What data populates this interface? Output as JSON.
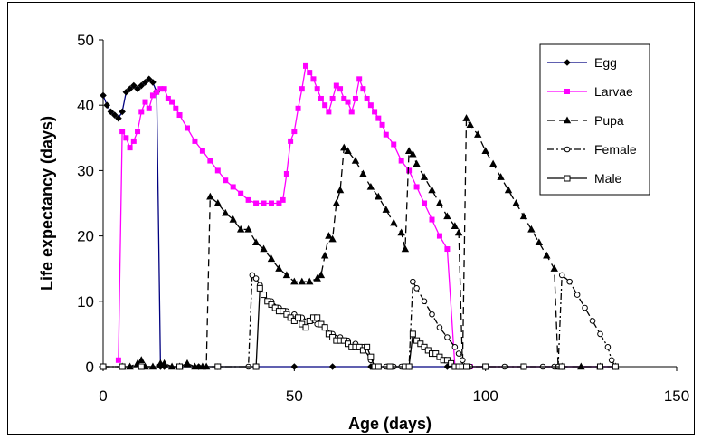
{
  "chart_data": {
    "type": "line",
    "title": "",
    "xlabel": "Age (days)",
    "ylabel": "Life expectancy (days)",
    "xlim": [
      0,
      150
    ],
    "ylim": [
      0,
      50
    ],
    "xticks": [
      0,
      50,
      100,
      150
    ],
    "yticks": [
      0,
      10,
      20,
      30,
      40,
      50
    ],
    "xtick_labels": [
      "0",
      "50",
      "100",
      "150"
    ],
    "ytick_labels": [
      "0",
      "10",
      "20",
      "30",
      "40",
      "50"
    ],
    "grid": false,
    "legend_position": "top-right",
    "series": [
      {
        "name": "Egg",
        "color": "#000080",
        "marker": "diamond",
        "dash": "solid",
        "x": [
          0,
          1,
          2,
          3,
          4,
          5,
          6,
          7,
          8,
          9,
          10,
          11,
          12,
          13,
          14,
          15,
          16,
          20,
          25,
          30,
          40,
          50,
          60,
          70,
          80,
          90,
          100,
          110,
          120,
          130,
          134
        ],
        "y": [
          41.5,
          40,
          39,
          38.5,
          38,
          39,
          42,
          42.5,
          43,
          42.5,
          43,
          43.5,
          44,
          43.5,
          42,
          0,
          0,
          0,
          0,
          0,
          0,
          0,
          0,
          0,
          0,
          0,
          0,
          0,
          0,
          0,
          0
        ]
      },
      {
        "name": "Larvae",
        "color": "#ff00ff",
        "marker": "square",
        "dash": "solid",
        "x": [
          4,
          5,
          6,
          7,
          8,
          9,
          10,
          11,
          12,
          13,
          14,
          15,
          16,
          17,
          18,
          19,
          20,
          22,
          24,
          26,
          28,
          30,
          32,
          34,
          36,
          38,
          40,
          42,
          44,
          46,
          47,
          48,
          49,
          50,
          51,
          52,
          53,
          54,
          55,
          56,
          57,
          58,
          59,
          60,
          61,
          62,
          63,
          64,
          65,
          66,
          67,
          68,
          69,
          70,
          71,
          72,
          73,
          74,
          76,
          78,
          80,
          82,
          84,
          86,
          88,
          90,
          92,
          93,
          94,
          95,
          96,
          100,
          110,
          120,
          130,
          134
        ],
        "y": [
          1,
          36,
          35,
          33.5,
          34.5,
          36,
          39,
          40.5,
          39.5,
          41.5,
          42,
          42.5,
          42.5,
          41,
          40.5,
          39.5,
          38.5,
          36.5,
          34.5,
          33,
          31.5,
          30,
          28.5,
          27.5,
          26.5,
          25.5,
          25,
          25,
          25,
          25,
          25.5,
          29.5,
          34.5,
          36,
          39.5,
          42.5,
          46,
          45,
          44,
          42.5,
          41,
          40,
          39,
          41,
          43,
          42.5,
          41,
          40.5,
          39,
          41,
          44,
          42.5,
          41,
          40,
          39,
          38,
          37,
          35.5,
          34,
          31.5,
          30,
          27.5,
          25,
          22.5,
          20,
          18,
          0,
          0,
          0,
          0,
          0,
          0,
          0,
          0,
          0,
          0
        ]
      },
      {
        "name": "Pupa",
        "color": "#000000",
        "marker": "triangle",
        "dash": "longdash",
        "x": [
          0,
          5,
          7,
          9,
          10,
          11,
          13,
          15,
          16,
          18,
          20,
          22,
          24,
          26,
          27,
          28,
          30,
          32,
          34,
          36,
          38,
          40,
          42,
          44,
          46,
          48,
          50,
          52,
          54,
          56,
          57,
          58,
          59,
          60,
          61,
          62,
          63,
          64,
          66,
          68,
          70,
          72,
          74,
          76,
          78,
          79,
          80,
          81,
          82,
          84,
          86,
          88,
          90,
          92,
          93,
          94,
          95,
          96,
          98,
          100,
          102,
          104,
          106,
          108,
          110,
          112,
          114,
          116,
          118,
          119,
          120,
          125,
          130,
          134
        ],
        "y": [
          0,
          0,
          0,
          0.5,
          1,
          0,
          0,
          0.5,
          0.5,
          0,
          0,
          0.5,
          0,
          0,
          0,
          26,
          25,
          23.5,
          22.5,
          21,
          21,
          19,
          18,
          16.5,
          15,
          14,
          13,
          13,
          13,
          13.5,
          14,
          17,
          20,
          19.5,
          25,
          27,
          33.5,
          33,
          31.5,
          29.5,
          27.5,
          26,
          24,
          22,
          20.5,
          18,
          33,
          32.5,
          31,
          29,
          27,
          25,
          23,
          21.5,
          20.5,
          0,
          38,
          37,
          35.5,
          33,
          31,
          29,
          27,
          25,
          23,
          21,
          19,
          17,
          15,
          0,
          0,
          0,
          0,
          0
        ]
      },
      {
        "name": "Female",
        "color": "#000000",
        "marker": "circle",
        "dash": "dashdot",
        "x": [
          0,
          5,
          10,
          20,
          30,
          38,
          39,
          40,
          41,
          42,
          44,
          46,
          48,
          50,
          52,
          54,
          56,
          58,
          60,
          62,
          64,
          66,
          68,
          70,
          72,
          74,
          76,
          78,
          79,
          80,
          81,
          82,
          84,
          86,
          88,
          90,
          92,
          93,
          94,
          95,
          96,
          100,
          105,
          110,
          115,
          118,
          119,
          120,
          122,
          124,
          126,
          128,
          130,
          132,
          133,
          134
        ],
        "y": [
          0,
          0,
          0,
          0,
          0,
          0,
          14,
          13.5,
          12.5,
          11,
          10,
          9,
          8.5,
          8,
          7.5,
          7,
          6.5,
          6,
          5,
          4.5,
          4,
          3.5,
          3,
          1,
          0,
          0,
          0,
          0,
          0,
          0,
          13,
          12,
          10,
          8,
          6,
          4.5,
          3,
          2,
          1,
          0,
          0,
          0,
          0,
          0,
          0,
          0,
          0,
          14,
          13,
          11,
          9,
          7,
          5,
          3,
          1,
          0
        ]
      },
      {
        "name": "Male",
        "color": "#000000",
        "marker": "open-square",
        "dash": "solid",
        "x": [
          0,
          5,
          10,
          20,
          30,
          40,
          41,
          42,
          43,
          44,
          45,
          46,
          47,
          48,
          49,
          50,
          51,
          52,
          53,
          54,
          55,
          56,
          57,
          58,
          59,
          60,
          61,
          62,
          63,
          64,
          65,
          66,
          67,
          68,
          69,
          70,
          71,
          72,
          75,
          79,
          80,
          81,
          82,
          83,
          84,
          85,
          86,
          87,
          88,
          89,
          90,
          91,
          92,
          93,
          94,
          95,
          100,
          110,
          120,
          130,
          134
        ],
        "y": [
          0,
          0,
          0,
          0,
          0,
          0,
          12,
          11,
          10,
          9.5,
          9,
          8.5,
          8.5,
          8,
          7.5,
          7,
          7.5,
          6.5,
          6,
          7,
          7.5,
          7.5,
          6.5,
          6,
          5,
          4.5,
          4,
          4,
          4,
          3.5,
          3,
          3,
          3,
          2.5,
          3,
          1.5,
          0,
          0,
          0,
          0,
          0,
          5,
          4,
          3.5,
          3,
          2.5,
          2,
          2,
          1.5,
          1,
          1,
          0.5,
          0,
          0,
          0,
          0,
          0,
          0,
          0,
          0,
          0
        ]
      }
    ]
  }
}
